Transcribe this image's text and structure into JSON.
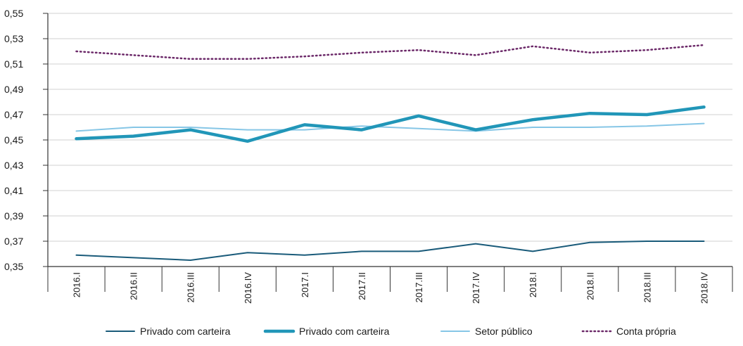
{
  "chart_data": {
    "type": "line",
    "categories": [
      "2016.I",
      "2016.II",
      "2016.III",
      "2016.IV",
      "2017.I",
      "2017.II",
      "2017.III",
      "2017.IV",
      "2018.I",
      "2018.II",
      "2018.III",
      "2018.IV"
    ],
    "ylim": [
      0.35,
      0.55
    ],
    "yticks": [
      0.35,
      0.37,
      0.39,
      0.41,
      0.43,
      0.45,
      0.47,
      0.49,
      0.51,
      0.53,
      0.55
    ],
    "ytick_labels": [
      "0,35",
      "0,37",
      "0,39",
      "0,41",
      "0,43",
      "0,45",
      "0,47",
      "0,49",
      "0,51",
      "0,53",
      "0,55"
    ],
    "grid": "horizontal",
    "legend_position": "bottom",
    "series": [
      {
        "name": "Privado com carteira",
        "color": "#1a5b7a",
        "style": "solid-thin",
        "values": [
          0.359,
          0.357,
          0.355,
          0.361,
          0.359,
          0.362,
          0.362,
          0.368,
          0.362,
          0.369,
          0.37,
          0.37
        ]
      },
      {
        "name": "Privado com carteira",
        "color": "#2196b8",
        "style": "solid-thick",
        "values": [
          0.451,
          0.453,
          0.458,
          0.449,
          0.462,
          0.458,
          0.469,
          0.458,
          0.466,
          0.471,
          0.47,
          0.476
        ]
      },
      {
        "name": "Setor público",
        "color": "#86c6e6",
        "style": "solid-thin",
        "values": [
          0.457,
          0.46,
          0.46,
          0.458,
          0.458,
          0.461,
          0.459,
          0.457,
          0.46,
          0.46,
          0.461,
          0.463
        ]
      },
      {
        "name": "Conta própria",
        "color": "#6b2868",
        "style": "dotted",
        "values": [
          0.52,
          0.517,
          0.514,
          0.514,
          0.516,
          0.519,
          0.521,
          0.517,
          0.524,
          0.519,
          0.521,
          0.525
        ]
      }
    ]
  }
}
